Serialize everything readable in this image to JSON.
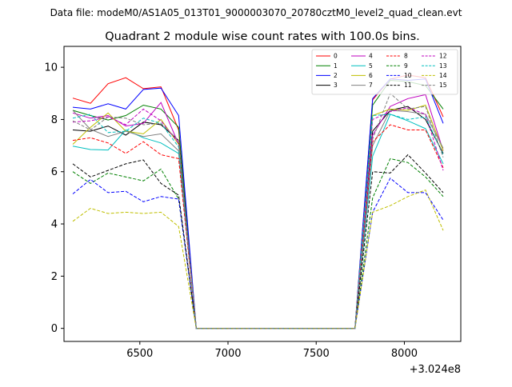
{
  "figure": {
    "suptitle": "Data file: modeM0/AS1A05_013T01_9000003070_20780cztM0_level2_quad_clean.evt",
    "offset_label": "+3.024e8"
  },
  "chart_data": {
    "type": "line",
    "title": "Quadrant 2 module wise count rates with 100.0s bins.",
    "xlabel": "",
    "ylabel": "",
    "x_offset": 302400000,
    "xlim": [
      6070,
      8320
    ],
    "ylim": [
      -0.5,
      10.8
    ],
    "xticks": [
      6500,
      7000,
      7500,
      8000
    ],
    "yticks": [
      0,
      2,
      4,
      6,
      8,
      10
    ],
    "grid": false,
    "legend_position": "top-right",
    "x": [
      6120,
      6220,
      6320,
      6420,
      6520,
      6620,
      6720,
      6820,
      6920,
      7020,
      7120,
      7220,
      7320,
      7420,
      7520,
      7620,
      7720,
      7820,
      7920,
      8020,
      8120,
      8220
    ],
    "series": [
      {
        "name": "0",
        "color": "#ff0000",
        "dash": "solid",
        "values": [
          8.82,
          8.62,
          9.37,
          9.6,
          9.18,
          9.25,
          7.6,
          0,
          0,
          0,
          0,
          0,
          0,
          0,
          0,
          0,
          0,
          8.75,
          9.55,
          9.7,
          9.6,
          8.1
        ]
      },
      {
        "name": "1",
        "color": "#008000",
        "dash": "solid",
        "values": [
          8.35,
          8.15,
          7.98,
          8.15,
          8.55,
          8.4,
          7.7,
          0,
          0,
          0,
          0,
          0,
          0,
          0,
          0,
          0,
          0,
          8.55,
          9.5,
          9.45,
          9.3,
          8.4
        ]
      },
      {
        "name": "2",
        "color": "#0000ff",
        "dash": "solid",
        "values": [
          8.47,
          8.4,
          8.6,
          8.4,
          9.15,
          9.2,
          8.15,
          0,
          0,
          0,
          0,
          0,
          0,
          0,
          0,
          0,
          0,
          8.8,
          9.55,
          9.5,
          9.55,
          7.85
        ]
      },
      {
        "name": "3",
        "color": "#000000",
        "dash": "solid",
        "values": [
          7.6,
          7.55,
          7.75,
          7.4,
          7.9,
          7.8,
          7.2,
          0,
          0,
          0,
          0,
          0,
          0,
          0,
          0,
          0,
          0,
          7.55,
          8.35,
          8.5,
          8.0,
          6.7
        ]
      },
      {
        "name": "4",
        "color": "#bf00bf",
        "dash": "solid",
        "values": [
          8.25,
          8.05,
          8.15,
          7.75,
          7.85,
          8.65,
          7.05,
          0,
          0,
          0,
          0,
          0,
          0,
          0,
          0,
          0,
          0,
          7.4,
          8.5,
          8.8,
          8.95,
          6.8
        ]
      },
      {
        "name": "5",
        "color": "#00bfbf",
        "dash": "solid",
        "values": [
          6.98,
          6.85,
          6.83,
          7.6,
          7.3,
          7.1,
          6.7,
          0,
          0,
          0,
          0,
          0,
          0,
          0,
          0,
          0,
          0,
          6.6,
          8.2,
          7.95,
          7.65,
          6.3
        ]
      },
      {
        "name": "6",
        "color": "#bfbf00",
        "dash": "solid",
        "values": [
          7.05,
          7.7,
          8.25,
          7.55,
          7.45,
          8.0,
          7.05,
          0,
          0,
          0,
          0,
          0,
          0,
          0,
          0,
          0,
          0,
          8.15,
          8.4,
          8.35,
          8.55,
          6.8
        ]
      },
      {
        "name": "7",
        "color": "#808080",
        "dash": "solid",
        "values": [
          8.35,
          7.62,
          7.35,
          7.55,
          7.35,
          7.45,
          6.8,
          0,
          0,
          0,
          0,
          0,
          0,
          0,
          0,
          0,
          0,
          7.0,
          8.35,
          8.3,
          8.2,
          6.9
        ]
      },
      {
        "name": "8",
        "color": "#ff0000",
        "dash": "dashed",
        "values": [
          7.2,
          7.3,
          7.1,
          6.7,
          7.15,
          6.65,
          6.5,
          0,
          0,
          0,
          0,
          0,
          0,
          0,
          0,
          0,
          0,
          7.15,
          7.8,
          7.6,
          7.6,
          6.15
        ]
      },
      {
        "name": "9",
        "color": "#008000",
        "dash": "dashed",
        "values": [
          6.0,
          5.55,
          5.95,
          5.8,
          5.65,
          6.1,
          4.95,
          0,
          0,
          0,
          0,
          0,
          0,
          0,
          0,
          0,
          0,
          5.0,
          6.5,
          6.35,
          5.8,
          5.05
        ]
      },
      {
        "name": "10",
        "color": "#0000ff",
        "dash": "dashed",
        "values": [
          5.15,
          5.7,
          5.2,
          5.25,
          4.85,
          5.05,
          4.95,
          0,
          0,
          0,
          0,
          0,
          0,
          0,
          0,
          0,
          0,
          4.45,
          5.75,
          5.2,
          5.2,
          4.15
        ]
      },
      {
        "name": "11",
        "color": "#000000",
        "dash": "dashed",
        "values": [
          6.3,
          5.8,
          6.05,
          6.3,
          6.45,
          5.55,
          5.1,
          0,
          0,
          0,
          0,
          0,
          0,
          0,
          0,
          0,
          0,
          6.0,
          5.95,
          6.65,
          5.95,
          5.2
        ]
      },
      {
        "name": "12",
        "color": "#bf00bf",
        "dash": "dashed",
        "values": [
          7.9,
          7.95,
          8.1,
          7.8,
          8.4,
          7.95,
          7.1,
          0,
          0,
          0,
          0,
          0,
          0,
          0,
          0,
          0,
          0,
          8.0,
          8.3,
          8.45,
          8.2,
          6.05
        ]
      },
      {
        "name": "13",
        "color": "#00bfbf",
        "dash": "dashed",
        "values": [
          8.05,
          8.2,
          7.5,
          7.55,
          8.05,
          7.85,
          6.95,
          0,
          0,
          0,
          0,
          0,
          0,
          0,
          0,
          0,
          0,
          8.15,
          8.2,
          8.0,
          8.1,
          6.65
        ]
      },
      {
        "name": "14",
        "color": "#bfbf00",
        "dash": "dashed",
        "values": [
          4.1,
          4.6,
          4.4,
          4.45,
          4.4,
          4.45,
          3.9,
          0,
          0,
          0,
          0,
          0,
          0,
          0,
          0,
          0,
          0,
          4.45,
          4.7,
          5.05,
          5.3,
          3.75
        ]
      },
      {
        "name": "15",
        "color": "#808080",
        "dash": "dashed",
        "values": [
          7.95,
          7.6,
          8.1,
          8.05,
          7.8,
          7.85,
          7.2,
          0,
          0,
          0,
          0,
          0,
          0,
          0,
          0,
          0,
          0,
          7.25,
          9.0,
          8.4,
          8.5,
          6.55
        ]
      }
    ]
  }
}
